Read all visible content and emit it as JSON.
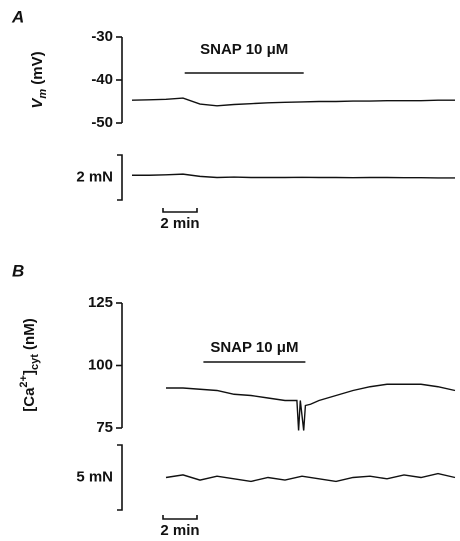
{
  "chart_data": [
    {
      "type": "line",
      "panel": "A",
      "ylabel_parts": [
        "V",
        "m",
        " (mV)"
      ],
      "ylim": [
        -50,
        -30
      ],
      "yticks": [
        -30,
        -40,
        -50
      ],
      "xlim": [
        0,
        19
      ],
      "x": [
        0,
        1,
        2,
        3,
        4,
        5,
        6,
        7,
        8,
        9,
        10,
        11,
        12,
        13,
        14,
        15,
        16,
        17,
        18,
        19
      ],
      "values": [
        -44.7,
        -44.6,
        -44.5,
        -44.2,
        -45.6,
        -46,
        -45.7,
        -45.5,
        -45.3,
        -45.2,
        -45.1,
        -45,
        -45,
        -44.9,
        -44.9,
        -44.8,
        -44.8,
        -44.8,
        -44.7,
        -44.7
      ],
      "treatment": {
        "label": "SNAP 10 μM",
        "start": 3.1,
        "end": 10.1
      },
      "force": {
        "ylim": [
          0,
          2
        ],
        "x": [
          0,
          1,
          2,
          3,
          4,
          5,
          6,
          7,
          8,
          9,
          10,
          11,
          12,
          13,
          14,
          15,
          16,
          17,
          18,
          19
        ],
        "values": [
          1.1,
          1.1,
          1.12,
          1.15,
          1.05,
          1.0,
          1.02,
          1.0,
          1.0,
          1.0,
          1.01,
          1.0,
          1.0,
          0.99,
          1.0,
          1.0,
          0.99,
          0.99,
          0.98,
          0.98
        ],
        "scale_bar": {
          "value": 2,
          "label": "2 mN"
        }
      },
      "time_scale_bar": {
        "value": 2,
        "label": "2 min"
      }
    },
    {
      "type": "line",
      "panel": "B",
      "ylabel_parts": [
        "[Ca",
        "2+",
        "]",
        "cyt",
        " (nM)"
      ],
      "ylim": [
        75,
        125
      ],
      "yticks": [
        125,
        100,
        75
      ],
      "xlim": [
        0,
        19
      ],
      "x": [
        2,
        3,
        4,
        5,
        6,
        7,
        8,
        9,
        9.7,
        9.8,
        9.9,
        10.1,
        10.2,
        10.5,
        11,
        12,
        13,
        14,
        15,
        16,
        17,
        18,
        19
      ],
      "values": [
        91,
        91,
        90.5,
        90,
        88.5,
        88,
        87,
        86,
        86,
        74,
        86,
        74,
        84,
        84.5,
        86,
        88,
        90,
        91.5,
        92.5,
        92.5,
        92.5,
        91.5,
        90
      ],
      "treatment": {
        "label": "SNAP 10 μM",
        "start": 4.2,
        "end": 10.2
      },
      "force": {
        "ylim": [
          0,
          5
        ],
        "x": [
          2,
          3,
          4,
          5,
          6,
          7,
          8,
          9,
          10,
          11,
          12,
          13,
          14,
          15,
          16,
          17,
          18,
          19
        ],
        "values": [
          2.5,
          2.7,
          2.3,
          2.6,
          2.4,
          2.2,
          2.5,
          2.3,
          2.6,
          2.4,
          2.2,
          2.5,
          2.6,
          2.4,
          2.7,
          2.5,
          2.8,
          2.5
        ],
        "scale_bar": {
          "value": 5,
          "label": "5 mN"
        }
      },
      "time_scale_bar": {
        "value": 2,
        "label": "2 min"
      }
    }
  ]
}
